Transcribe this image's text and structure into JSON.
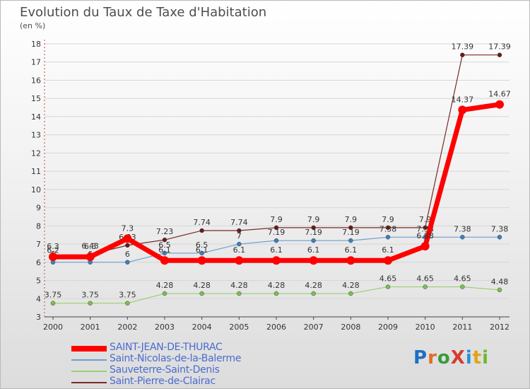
{
  "title": "Evolution du Taux de Taxe d'Habitation",
  "unit_label": "(en %)",
  "logo": {
    "text": "ProXiti",
    "letters": [
      {
        "ch": "P",
        "color": "#1d6fc3"
      },
      {
        "ch": "r",
        "color": "#e46a25"
      },
      {
        "ch": "o",
        "color": "#3a9a3a"
      },
      {
        "ch": "X",
        "color": "#d63b2f"
      },
      {
        "ch": "i",
        "color": "#2a8fd6"
      },
      {
        "ch": "t",
        "color": "#e2a21a"
      },
      {
        "ch": "i",
        "color": "#6bb92e"
      }
    ]
  },
  "chart_data": {
    "type": "line",
    "title": "Evolution du Taux de Taxe d'Habitation",
    "ylabel": "(en %)",
    "xlabel": "",
    "ylim": [
      3,
      18
    ],
    "y_ticks": [
      3,
      4,
      5,
      6,
      7,
      8,
      9,
      10,
      11,
      12,
      13,
      14,
      15,
      16,
      17,
      18
    ],
    "categories": [
      "2000",
      "2001",
      "2002",
      "2003",
      "2004",
      "2005",
      "2006",
      "2007",
      "2008",
      "2009",
      "2010",
      "2011",
      "2012"
    ],
    "series": [
      {
        "name": "Saint-Pierre-de-Clairac",
        "color": "#7a2a2a",
        "marker": "#6b1a1a",
        "width": 1.2,
        "r": 3,
        "values": [
          6.2,
          6.43,
          6.93,
          7.23,
          7.74,
          7.74,
          7.9,
          7.9,
          7.9,
          7.9,
          7.9,
          17.39,
          17.39
        ],
        "labels": [
          "6.2",
          "6.43",
          "6.93",
          "7.23",
          "7.74",
          "7.74",
          "7.9",
          "7.9",
          "7.9",
          "7.9",
          "7.9",
          "17.39",
          "17.39"
        ]
      },
      {
        "name": "Sauveterre-Saint-Denis",
        "color": "#98cf72",
        "marker": "#7cc04c",
        "width": 1.2,
        "r": 3,
        "values": [
          3.75,
          3.75,
          3.75,
          4.28,
          4.28,
          4.28,
          4.28,
          4.28,
          4.28,
          4.65,
          4.65,
          4.65,
          4.48
        ],
        "labels": [
          "3.75",
          "3.75",
          "3.75",
          "4.28",
          "4.28",
          "4.28",
          "4.28",
          "4.28",
          "4.28",
          "4.65",
          "4.65",
          "4.65",
          "4.48"
        ]
      },
      {
        "name": "Saint-Nicolas-de-la-Balerme",
        "color": "#6c9ed0",
        "marker": "#3b7fc4",
        "width": 1.2,
        "r": 3,
        "values": [
          6,
          6,
          6,
          6.5,
          6.5,
          7,
          7.19,
          7.19,
          7.19,
          7.38,
          7.38,
          7.38,
          7.38
        ],
        "labels": [
          "6",
          "6",
          "6",
          "6.5",
          "6.5",
          "7",
          "7.19",
          "7.19",
          "7.19",
          "7.38",
          "7.38",
          "7.38",
          "7.38"
        ]
      },
      {
        "name": "SAINT-JEAN-DE-THURAC",
        "color": "#ff0000",
        "marker": "#ff0000",
        "width": 7,
        "r": 6,
        "values": [
          6.3,
          6.3,
          7.3,
          6.1,
          6.1,
          6.1,
          6.1,
          6.1,
          6.1,
          6.1,
          6.88,
          14.37,
          14.67
        ],
        "labels": [
          "6.3",
          "6.3",
          "7.3",
          "6.1",
          "6.1",
          "6.1",
          "6.1",
          "6.1",
          "6.1",
          "6.1",
          "6.88",
          "14.37",
          "14.67"
        ]
      }
    ],
    "legend_order": [
      "SAINT-JEAN-DE-THURAC",
      "Saint-Nicolas-de-la-Balerme",
      "Sauveterre-Saint-Denis",
      "Saint-Pierre-de-Clairac"
    ],
    "legend_colors": [
      "#ff0000",
      "#6c9ed0",
      "#98cf72",
      "#7a2a2a"
    ],
    "legend_placement": "bottom"
  }
}
